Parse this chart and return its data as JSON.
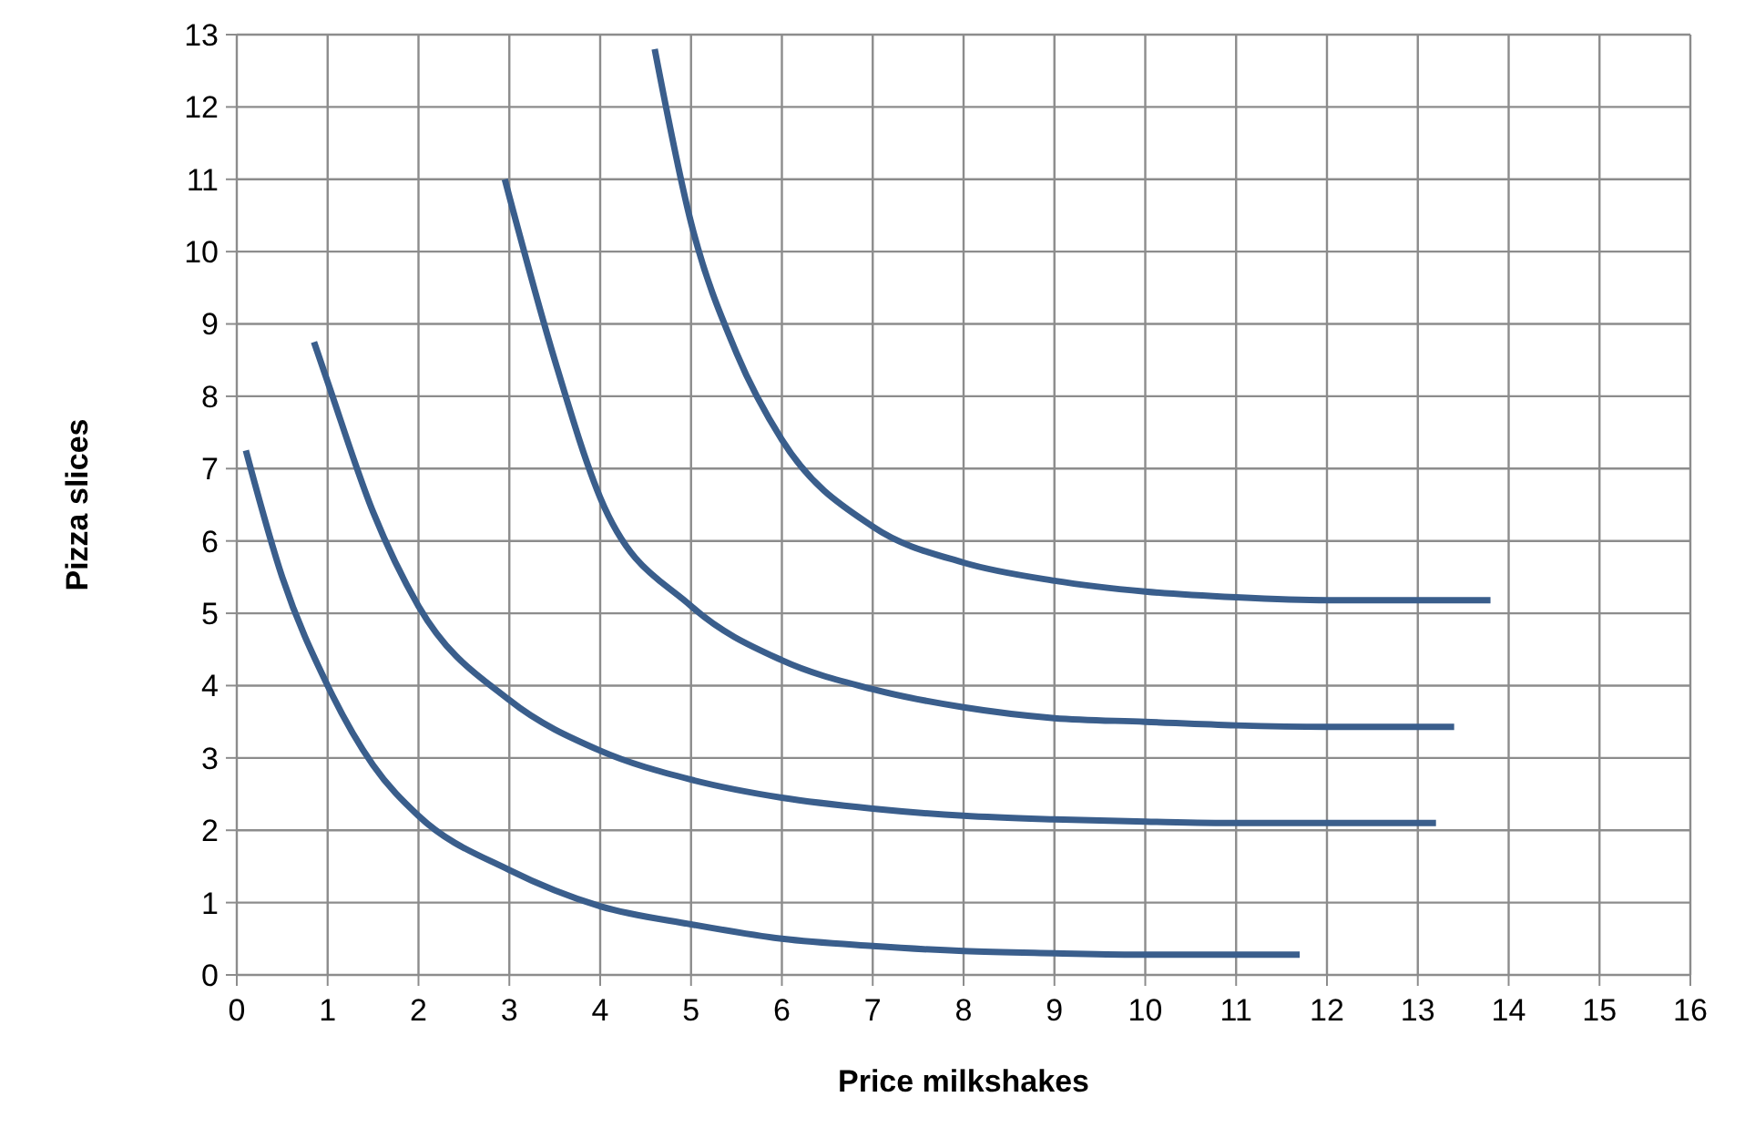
{
  "chart_data": {
    "type": "line",
    "xlabel": "Price milkshakes",
    "ylabel": "Pizza slices",
    "xlim": [
      0,
      16
    ],
    "xticks": [
      0,
      1,
      2,
      3,
      4,
      5,
      6,
      7,
      8,
      9,
      10,
      11,
      12,
      13,
      14,
      15,
      16
    ],
    "ylim": [
      0,
      13
    ],
    "yticks": [
      0,
      1,
      2,
      3,
      4,
      5,
      6,
      7,
      8,
      9,
      10,
      11,
      12,
      13
    ],
    "grid": true,
    "marker": "none",
    "line_style": "solid",
    "series": [
      {
        "color": "#3a5e8c",
        "x": [
          0.1,
          0.5,
          1,
          1.5,
          2,
          3,
          4,
          5,
          6,
          7,
          8,
          9,
          10,
          11.7
        ],
        "values": [
          7.25,
          5.5,
          4.0,
          2.9,
          2.2,
          1.45,
          0.95,
          0.7,
          0.5,
          0.4,
          0.33,
          0.3,
          0.28,
          0.28
        ]
      },
      {
        "color": "#3a5e8c",
        "x": [
          0.85,
          1,
          1.5,
          2,
          3,
          4,
          5,
          6,
          7,
          8,
          9,
          10,
          11,
          13.2
        ],
        "values": [
          8.75,
          8.2,
          6.4,
          5.1,
          3.8,
          3.1,
          2.7,
          2.45,
          2.3,
          2.2,
          2.15,
          2.12,
          2.1,
          2.1
        ]
      },
      {
        "color": "#3a5e8c",
        "x": [
          2.95,
          3.5,
          4,
          5,
          6,
          7,
          8,
          9,
          10,
          11,
          12,
          13.4
        ],
        "values": [
          11,
          8.5,
          6.6,
          5.1,
          4.35,
          3.95,
          3.7,
          3.55,
          3.5,
          3.45,
          3.43,
          3.43
        ]
      },
      {
        "color": "#3a5e8c",
        "x": [
          4.6,
          5,
          5.5,
          6,
          7,
          8,
          9,
          10,
          11,
          12,
          13.8
        ],
        "values": [
          12.8,
          10.4,
          8.6,
          7.4,
          6.2,
          5.7,
          5.45,
          5.3,
          5.22,
          5.18,
          5.18
        ]
      }
    ]
  }
}
